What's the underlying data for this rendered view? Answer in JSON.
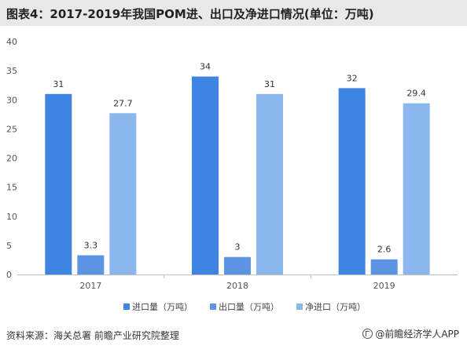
{
  "header": {
    "title": "图表4：2017-2019年我国POM进、出口及净进口情况(单位：万吨)"
  },
  "footer": {
    "source": "资料来源：海关总署 前瞻产业研究院整理",
    "brand": "@前瞻经济学人APP"
  },
  "chart_data": {
    "type": "bar",
    "categories": [
      "2017",
      "2018",
      "2019"
    ],
    "series": [
      {
        "name": "进口量（万吨）",
        "values": [
          31,
          34,
          32
        ],
        "labels": [
          "31",
          "34",
          "32"
        ],
        "color": "#3d85e0"
      },
      {
        "name": "出口量（万吨）",
        "values": [
          3.3,
          3,
          2.6
        ],
        "labels": [
          "3.3",
          "3",
          "2.6"
        ],
        "color": "#5b95e3"
      },
      {
        "name": "净进口（万吨）",
        "values": [
          27.7,
          31,
          29.4
        ],
        "labels": [
          "27.7",
          "31",
          "29.4"
        ],
        "color": "#8ab7ee"
      }
    ],
    "ylim": [
      0,
      40
    ],
    "yticks": [
      0,
      5,
      10,
      15,
      20,
      25,
      30,
      35,
      40
    ],
    "grid": false,
    "legend": "bottom"
  }
}
